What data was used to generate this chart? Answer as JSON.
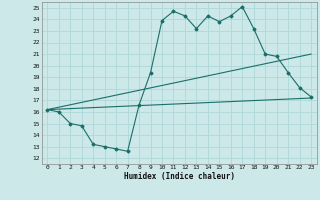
{
  "xlabel": "Humidex (Indice chaleur)",
  "ylabel": "",
  "bg_color": "#cce8e8",
  "grid_color": "#b0d8d8",
  "line_color": "#1a6e6a",
  "xlim": [
    -0.5,
    23.5
  ],
  "ylim": [
    11.5,
    25.5
  ],
  "yticks": [
    12,
    13,
    14,
    15,
    16,
    17,
    18,
    19,
    20,
    21,
    22,
    23,
    24,
    25
  ],
  "xticks": [
    0,
    1,
    2,
    3,
    4,
    5,
    6,
    7,
    8,
    9,
    10,
    11,
    12,
    13,
    14,
    15,
    16,
    17,
    18,
    19,
    20,
    21,
    22,
    23
  ],
  "curve1_x": [
    0,
    1,
    2,
    3,
    4,
    5,
    6,
    7,
    8,
    9,
    10,
    11,
    12,
    13,
    14,
    15,
    16,
    17,
    18,
    19,
    20,
    21,
    22,
    23
  ],
  "curve1_y": [
    16.2,
    16.0,
    15.0,
    14.8,
    13.2,
    13.0,
    12.8,
    12.6,
    16.6,
    19.4,
    23.9,
    24.7,
    24.3,
    23.2,
    24.3,
    23.8,
    24.3,
    25.1,
    23.2,
    21.0,
    20.8,
    19.4,
    18.1,
    17.3
  ],
  "curve2_x": [
    0,
    23
  ],
  "curve2_y": [
    16.2,
    21.0
  ],
  "curve3_x": [
    0,
    23
  ],
  "curve3_y": [
    16.2,
    17.2
  ]
}
